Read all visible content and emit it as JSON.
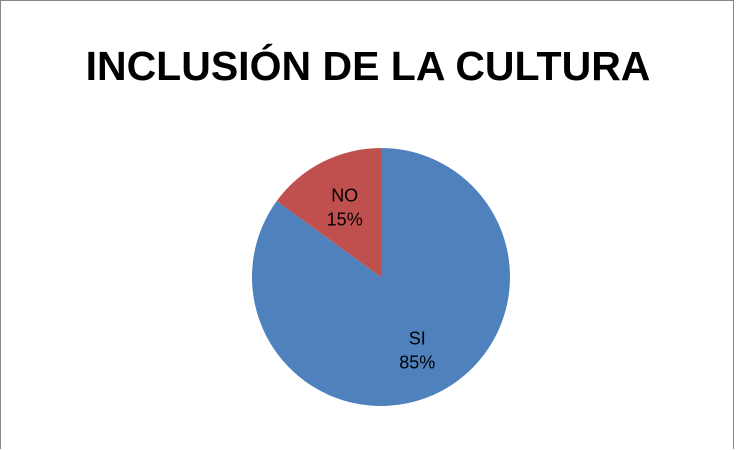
{
  "chart_data": {
    "type": "pie",
    "title": "INCLUSIÓN DE LA CULTURA",
    "slices": [
      {
        "label": "SI",
        "value": 85,
        "percent_label": "85%",
        "color": "#4f81bd"
      },
      {
        "label": "NO",
        "value": 15,
        "percent_label": "15%",
        "color": "#c0504d"
      }
    ],
    "start_angle_deg": 0,
    "direction": "clockwise",
    "legend": "none"
  }
}
